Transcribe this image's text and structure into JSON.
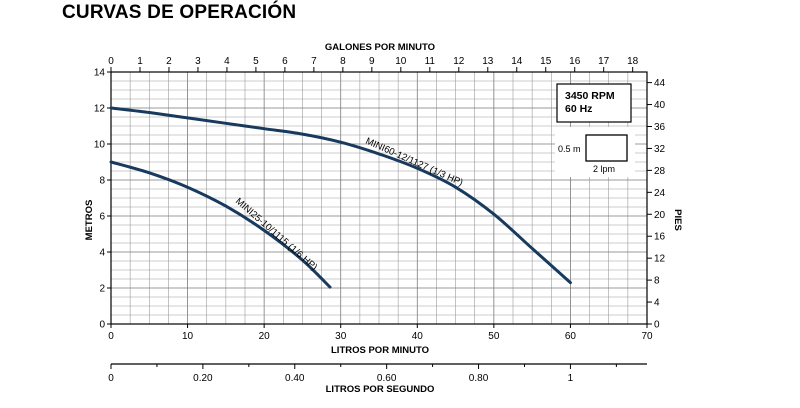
{
  "title": "CURVAS DE OPERACIÓN",
  "colors": {
    "curve": "#173a5e",
    "grid": "#9a9a9a",
    "frame": "#000000"
  },
  "legend": {
    "line1": "3450 RPM",
    "line2": "60 Hz"
  },
  "scale_box": {
    "vertical_label": "0.5 m",
    "horizontal_label": "2 lpm"
  },
  "chart_data": {
    "type": "line",
    "xlabel": "LITROS POR MINUTO",
    "ylabel": "METROS",
    "xlim": [
      0,
      70
    ],
    "ylim": [
      0,
      14
    ],
    "x_ticks": [
      0,
      10,
      20,
      30,
      40,
      50,
      60,
      70
    ],
    "y_ticks": [
      0,
      2,
      4,
      6,
      8,
      10,
      12,
      14
    ],
    "grid": true,
    "secondary_x_top": {
      "label": "GALONES POR MINUTO",
      "ticks": [
        0,
        1,
        2,
        3,
        4,
        5,
        6,
        7,
        8,
        9,
        10,
        11,
        12,
        13,
        14,
        15,
        16,
        17,
        18
      ]
    },
    "secondary_y_right": {
      "label": "PIES",
      "ticks": [
        0,
        4,
        8,
        12,
        16,
        20,
        24,
        28,
        32,
        36,
        40,
        44
      ]
    },
    "secondary_x_bottom": {
      "label": "LITROS POR SEGUNDO",
      "ticks": [
        "0",
        "0.20",
        "0.40",
        "0.60",
        "0.80",
        "1"
      ]
    },
    "series": [
      {
        "name": "MINI60-12/1127 (1/3 HP)",
        "x": [
          0,
          5,
          10,
          15,
          20,
          25,
          30,
          35,
          40,
          45,
          50,
          55,
          60
        ],
        "y": [
          12.0,
          11.75,
          11.45,
          11.15,
          10.85,
          10.55,
          10.1,
          9.45,
          8.65,
          7.6,
          6.1,
          4.2,
          2.3
        ]
      },
      {
        "name": "MINI25-10/1115 (1/6 HP)",
        "x": [
          0,
          5,
          10,
          15,
          20,
          25,
          28.6
        ],
        "y": [
          9.0,
          8.4,
          7.6,
          6.55,
          5.2,
          3.55,
          2.05
        ]
      }
    ]
  }
}
